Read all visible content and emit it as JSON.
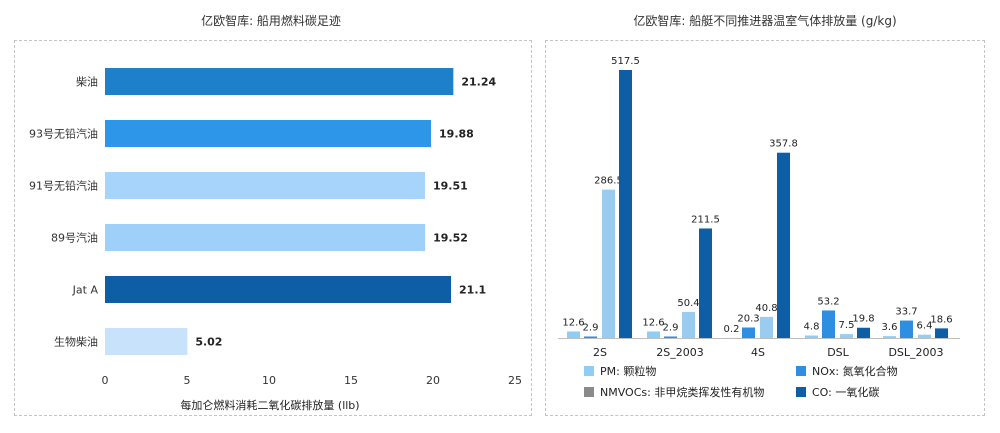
{
  "chart_data": [
    {
      "type": "bar",
      "orientation": "horizontal",
      "title": "亿欧智库: 船用燃料碳足迹",
      "xlabel": "每加仑燃料消耗二氧化碳排放量 (llb)",
      "ylabel": "",
      "xlim": [
        0,
        25
      ],
      "xticks": [
        "0",
        "5",
        "10",
        "15",
        "20",
        "25"
      ],
      "categories": [
        "柴油",
        "93号无铅汽油",
        "91号无铅汽油",
        "89号汽油",
        "Jat A",
        "生物柴油"
      ],
      "values": [
        21.24,
        19.88,
        19.51,
        19.52,
        21.1,
        5.02
      ],
      "value_labels": [
        "21.24",
        "19.88",
        "19.51",
        "19.52",
        "21.1",
        "5.02"
      ],
      "colors": [
        "#1e7fcb",
        "#2e96e8",
        "#a6d4fb",
        "#9ed0f9",
        "#0d5ea4",
        "#c9e2fb"
      ],
      "grid": false
    },
    {
      "type": "bar",
      "orientation": "vertical",
      "title": "亿欧智库: 船艇不同推进器温室气体排放量 (g/kg)",
      "categories": [
        "2S",
        "2S_2003",
        "4S",
        "DSL",
        "DSL_2003"
      ],
      "series": [
        {
          "name": "PM: 颗粒物",
          "color": "#8fcdf5",
          "values": [
            12.6,
            12.6,
            0.2,
            4.8,
            3.6
          ],
          "labels": [
            "12.6",
            "12.6",
            "0.2",
            "4.8",
            "3.6"
          ]
        },
        {
          "name": "NOx: 氮氧化合物",
          "color": "#2e8fe0",
          "values": [
            2.9,
            2.9,
            20.3,
            53.2,
            33.7
          ],
          "labels": [
            "2.9",
            "2.9",
            "20.3",
            "53.2",
            "33.7"
          ]
        },
        {
          "name": "NMVOCs: 非甲烷类挥发性有机物",
          "color": "#99ccef",
          "values": [
            286.5,
            50.4,
            40.8,
            7.5,
            6.4
          ],
          "labels": [
            "286.5",
            "50.4",
            "40.8",
            "7.5",
            "6.4"
          ]
        },
        {
          "name": "CO: 一氧化碳",
          "color": "#0d5ea4",
          "values": [
            517.5,
            211.5,
            357.8,
            19.8,
            18.6
          ],
          "labels": [
            "517.5",
            "211.5",
            "357.8",
            "19.8",
            "18.6"
          ]
        }
      ],
      "legend": [
        {
          "name": "PM: 颗粒物",
          "color": "#8fcdf5"
        },
        {
          "name": "NOx: 氮氧化合物",
          "color": "#2e8fe0"
        },
        {
          "name": "NMVOCs: 非甲烷类挥发性有机物",
          "color": "#8a8a8a"
        },
        {
          "name": "CO: 一氧化碳",
          "color": "#0d5ea4"
        }
      ],
      "legend_position": "bottom",
      "grid": false
    }
  ]
}
